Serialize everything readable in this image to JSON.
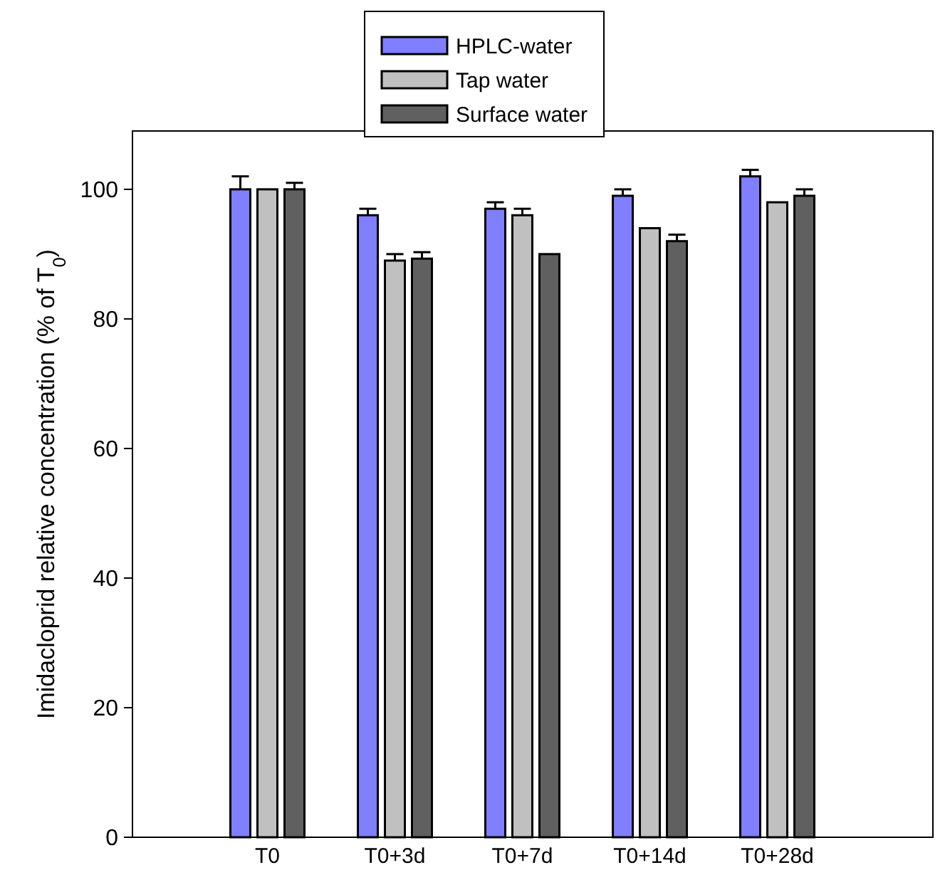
{
  "chart_data": {
    "type": "bar",
    "ylabel": "Imidacloprid relative concentration (% of T$_{0}$)",
    "categories": [
      "T0",
      "T0+3d",
      "T0+7d",
      "T0+14d",
      "T0+28d"
    ],
    "series": [
      {
        "name": "HPLC-water",
        "color": "#7f7fff",
        "values": [
          100,
          96,
          97,
          99,
          102
        ],
        "errors": [
          2,
          1,
          1,
          1,
          1
        ]
      },
      {
        "name": "Tap water",
        "color": "#c0c0c0",
        "values": [
          100,
          89,
          96,
          94,
          98
        ],
        "errors": [
          null,
          1,
          1,
          null,
          null
        ]
      },
      {
        "name": "Surface water",
        "color": "#606060",
        "values": [
          100,
          89.3,
          90,
          92,
          99
        ],
        "errors": [
          1,
          1,
          null,
          1,
          1
        ]
      }
    ],
    "ylim": [
      0,
      109
    ],
    "yticks": [
      0,
      20,
      40,
      60,
      80,
      100
    ],
    "grid": false,
    "legend": "top"
  }
}
